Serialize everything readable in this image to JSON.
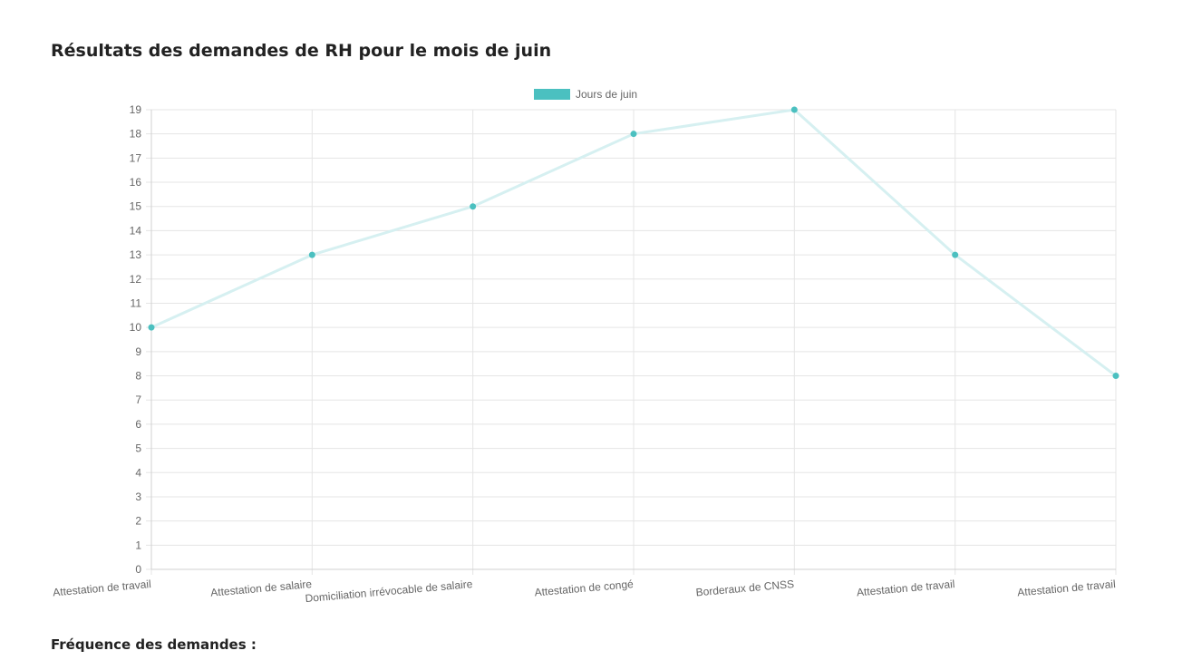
{
  "page": {
    "title": "Résultats des demandes de RH pour le mois de juin",
    "frequency_heading": "Fréquence des demandes :"
  },
  "chart_data": {
    "type": "line",
    "title": "",
    "categories": [
      "Attestation de travail",
      "Attestation de salaire",
      "Domiciliation irrévocable de salaire",
      "Attestation de congé",
      "Borderaux de CNSS",
      "Attestation de travail",
      "Attestation de travail"
    ],
    "series": [
      {
        "name": "Jours de juin",
        "values": [
          10,
          13,
          15,
          18,
          19,
          13,
          8
        ],
        "line_color": "#d6f0f1",
        "point_color": "#4bc0c0"
      }
    ],
    "xlabel": "",
    "ylabel": "",
    "ylim": [
      0,
      19
    ],
    "y_ticks": [
      "0",
      "1",
      "2",
      "3",
      "4",
      "5",
      "6",
      "7",
      "8",
      "9",
      "10",
      "11",
      "12",
      "13",
      "14",
      "15",
      "16",
      "17",
      "18",
      "19"
    ],
    "grid": true,
    "legend_position": "top",
    "colors": {
      "grid": "#e5e5e5",
      "axis_text": "#666666",
      "legend_swatch": "#4bc0c0"
    }
  }
}
